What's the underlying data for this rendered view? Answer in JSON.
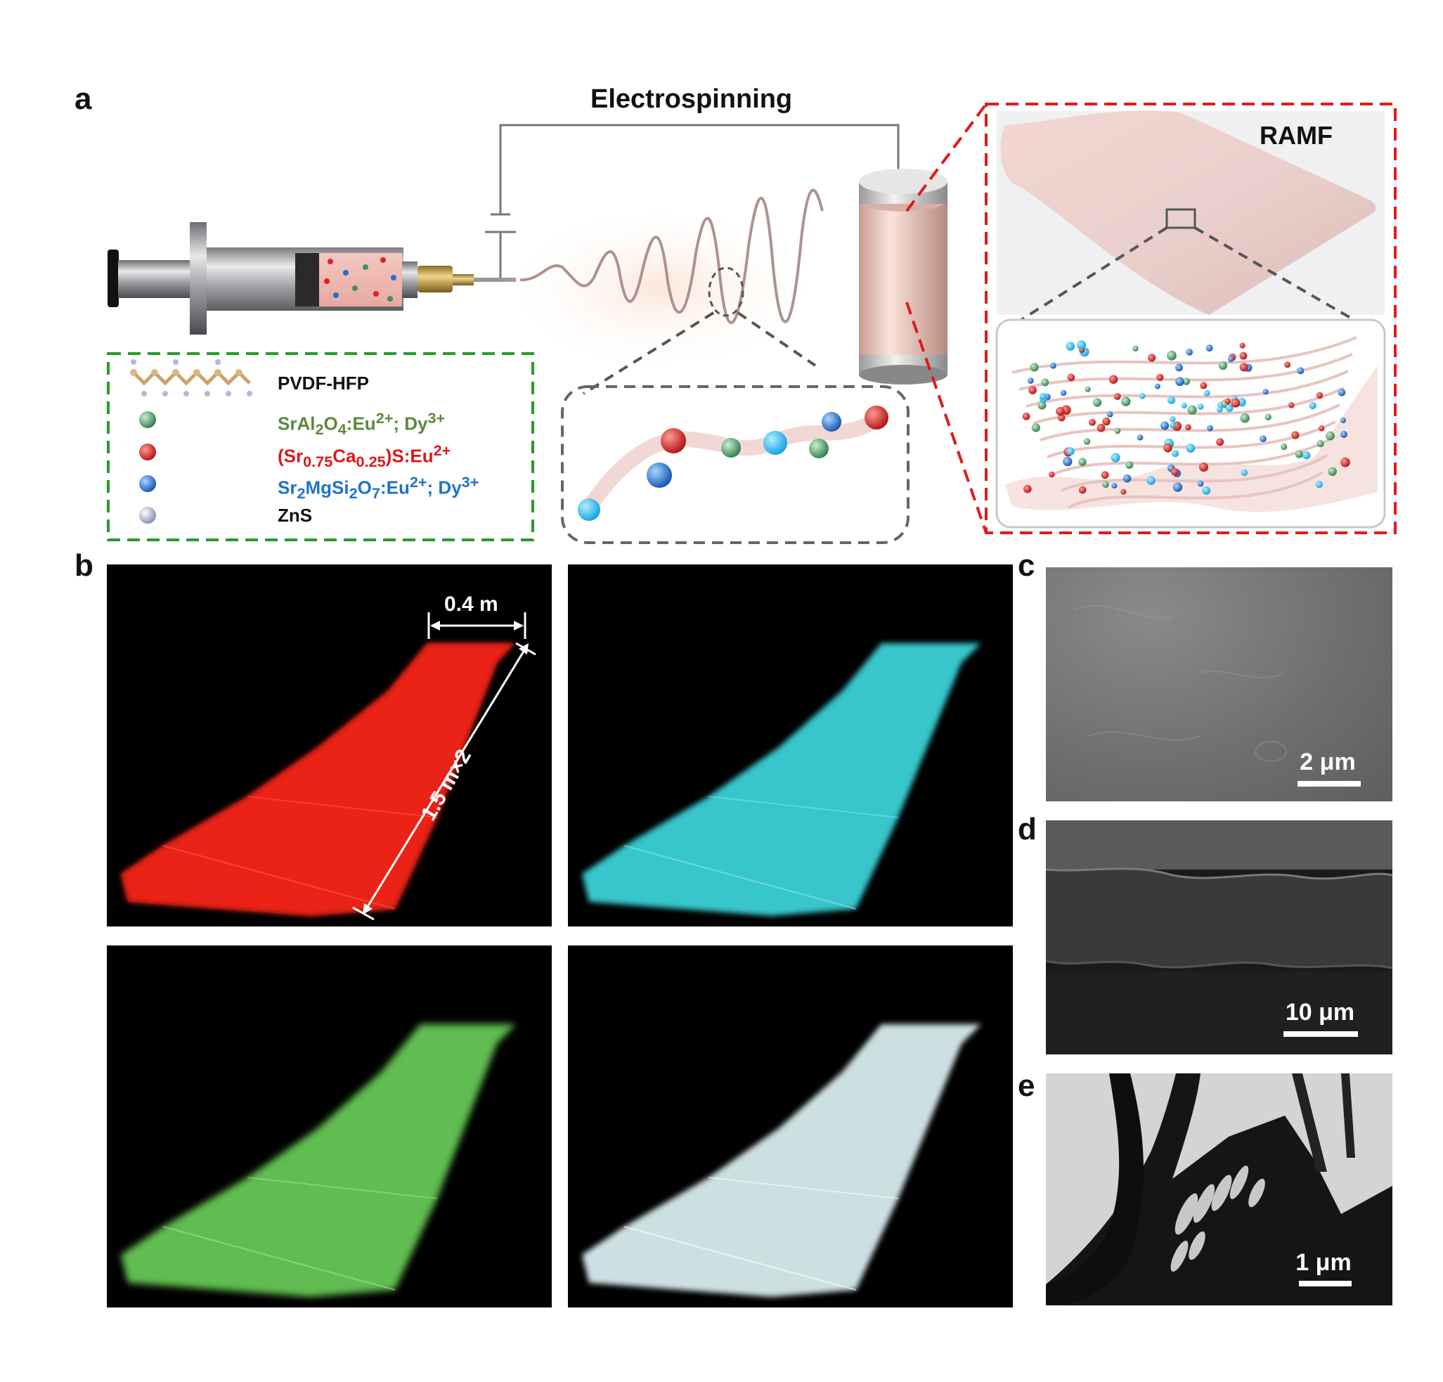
{
  "panel_a": {
    "letter": "a",
    "title": "Electrospinning",
    "ramf_label": "RAMF",
    "legend": [
      {
        "label": "PVDF-HFP",
        "color": "#111111"
      },
      {
        "label": "SrAl2O4:Eu2+; Dy3+",
        "color": "#5a8a3a",
        "marker_color": "#3f8f5a"
      },
      {
        "label": "(Sr0.75Ca0.25)S:Eu2+",
        "color": "#e01818",
        "marker_color": "#e02020"
      },
      {
        "label": "Sr2MgSi2O7:Eu2+; Dy3+",
        "color": "#1e73c8",
        "marker_color": "#2070d0"
      },
      {
        "label": "ZnS",
        "color": "#111111",
        "marker_color": "#b8c4d8"
      }
    ]
  },
  "panel_b": {
    "letter": "b",
    "width_label": "0.4 m",
    "length_label": "1.5 m×2",
    "photo_colors": [
      "#ff2a1a",
      "#3ad0d6",
      "#6cd25a",
      "#d8ecee"
    ]
  },
  "panel_c": {
    "letter": "c",
    "scale": "2 μm"
  },
  "panel_d": {
    "letter": "d",
    "scale": "10 μm"
  },
  "panel_e": {
    "letter": "e",
    "scale": "1 μm"
  }
}
